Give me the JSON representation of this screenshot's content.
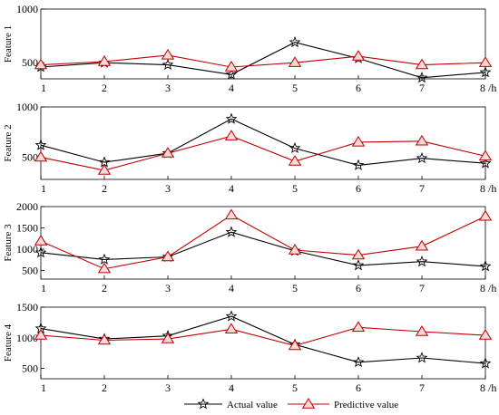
{
  "chart_data": {
    "type": "line",
    "categories": [
      "1",
      "2",
      "3",
      "4",
      "5",
      "6",
      "7",
      "8"
    ],
    "x_unit_label": "/h",
    "grid": false,
    "legend_placement": "bottom",
    "legend": [
      {
        "label": "Actual value",
        "marker": "star",
        "color": "#000000"
      },
      {
        "label": "Predictive value",
        "marker": "triangle",
        "color": "#c00000"
      }
    ],
    "colors": {
      "actual": "#000000",
      "predictive": "#c00000",
      "predictive_marker_fill": "#f8d8d8"
    },
    "panels": [
      {
        "ylabel": "Feature 1",
        "ylim": [
          350,
          1000
        ],
        "yticks": [
          "1000",
          "500"
        ],
        "ytick_values": [
          1000,
          500
        ],
        "series": [
          {
            "name": "Actual value",
            "values": [
              460,
              500,
              480,
              390,
              690,
              540,
              360,
              410
            ]
          },
          {
            "name": "Predictive value",
            "values": [
              480,
              510,
              570,
              460,
              500,
              560,
              480,
              500
            ]
          }
        ]
      },
      {
        "ylabel": "Feature 2",
        "ylim": [
          280,
          1000
        ],
        "yticks": [
          "1000",
          "500"
        ],
        "ytick_values": [
          1000,
          500
        ],
        "series": [
          {
            "name": "Actual value",
            "values": [
              620,
              450,
              540,
              880,
              590,
              420,
              490,
              440
            ]
          },
          {
            "name": "Predictive value",
            "values": [
              500,
              370,
              540,
              710,
              460,
              650,
              660,
              510
            ]
          }
        ]
      },
      {
        "ylabel": "Feature 3",
        "ylim": [
          300,
          2000
        ],
        "yticks": [
          "2000",
          "1500",
          "1000",
          "500"
        ],
        "ytick_values": [
          2000,
          1500,
          1000,
          500
        ],
        "series": [
          {
            "name": "Actual value",
            "values": [
              920,
              760,
              820,
              1400,
              960,
              620,
              710,
              600
            ]
          },
          {
            "name": "Predictive value",
            "values": [
              1190,
              540,
              820,
              1800,
              980,
              860,
              1070,
              1770
            ]
          }
        ]
      },
      {
        "ylabel": "Feature 4",
        "ylim": [
          330,
          1500
        ],
        "yticks": [
          "1500",
          "1000",
          "500"
        ],
        "ytick_values": [
          1500,
          1000,
          500
        ],
        "series": [
          {
            "name": "Actual value",
            "values": [
              1150,
              980,
              1030,
              1350,
              890,
              600,
              670,
              580
            ]
          },
          {
            "name": "Predictive value",
            "values": [
              1040,
              960,
              980,
              1140,
              870,
              1170,
              1100,
              1040
            ]
          }
        ]
      }
    ]
  }
}
